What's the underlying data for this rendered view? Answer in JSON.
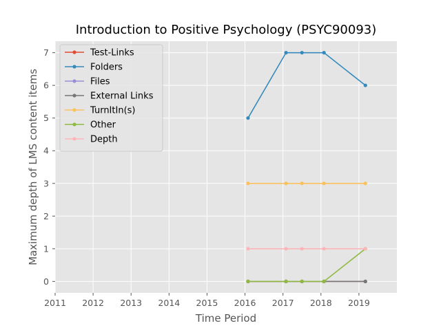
{
  "chart_data": {
    "type": "line",
    "title": "Introduction to Positive Psychology (PSYC90093)",
    "xlabel": "Time Period",
    "ylabel": "Maximum depth of LMS content items",
    "xlim": [
      2011,
      2020
    ],
    "ylim": [
      -0.35,
      7.35
    ],
    "xticks": [
      2011,
      2012,
      2013,
      2014,
      2015,
      2016,
      2017,
      2018,
      2019
    ],
    "yticks": [
      0,
      1,
      2,
      3,
      4,
      5,
      6,
      7
    ],
    "grid": true,
    "legend_position": "top-left",
    "x": [
      2016.08,
      2017.08,
      2017.5,
      2018.08,
      2019.17
    ],
    "series": [
      {
        "name": "Test-Links",
        "color": "#e24a33",
        "values": [
          0,
          0,
          0,
          0,
          0
        ]
      },
      {
        "name": "Folders",
        "color": "#348abd",
        "values": [
          5,
          7,
          7,
          7,
          6
        ]
      },
      {
        "name": "Files",
        "color": "#988ed5",
        "values": [
          0,
          0,
          0,
          0,
          0
        ]
      },
      {
        "name": "External Links",
        "color": "#777777",
        "values": [
          0,
          0,
          0,
          0,
          0
        ]
      },
      {
        "name": "TurnItIn(s)",
        "color": "#fbc15e",
        "values": [
          3,
          3,
          3,
          3,
          3
        ]
      },
      {
        "name": "Other",
        "color": "#8eba42",
        "values": [
          0,
          0,
          0,
          0,
          1
        ]
      },
      {
        "name": "Depth",
        "color": "#ffb5b8",
        "values": [
          1,
          1,
          1,
          1,
          1
        ]
      }
    ]
  }
}
